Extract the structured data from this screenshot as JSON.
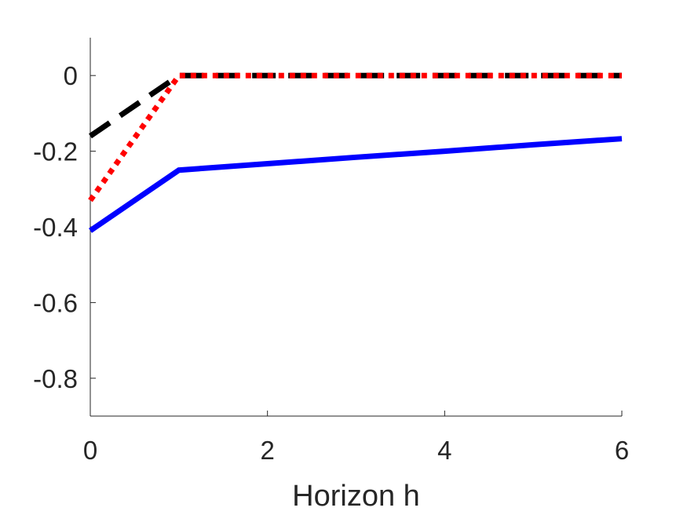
{
  "chart_data": {
    "type": "line",
    "title": "",
    "xlabel": "Horizon h",
    "ylabel": "",
    "xlim": [
      0,
      6
    ],
    "ylim": [
      -0.9,
      0.1
    ],
    "xticks": [
      0,
      2,
      4,
      6
    ],
    "xtick_labels": [
      "0",
      "2",
      "4",
      "6"
    ],
    "yticks": [
      0,
      -0.2,
      -0.4,
      -0.6,
      -0.8
    ],
    "ytick_labels": [
      "0",
      "-0.2",
      "-0.4",
      "-0.6",
      "-0.8"
    ],
    "grid": false,
    "legend": "none",
    "series": [
      {
        "style": "solid",
        "color": "#0000ff",
        "x": [
          0,
          1,
          2,
          3,
          4,
          5,
          6
        ],
        "y": [
          -0.41,
          -0.25,
          -0.233,
          -0.216,
          -0.2,
          -0.183,
          -0.167
        ]
      },
      {
        "style": "dashed",
        "color": "#000000",
        "x": [
          0,
          1,
          2,
          3,
          4,
          5,
          6
        ],
        "y": [
          -0.16,
          0,
          0,
          0,
          0,
          0,
          0
        ]
      },
      {
        "style": "dotted",
        "color": "#ff0000",
        "x": [
          0,
          1,
          2,
          3,
          4,
          5,
          6
        ],
        "y": [
          -0.33,
          0,
          0,
          0,
          0,
          0,
          0
        ]
      }
    ]
  }
}
